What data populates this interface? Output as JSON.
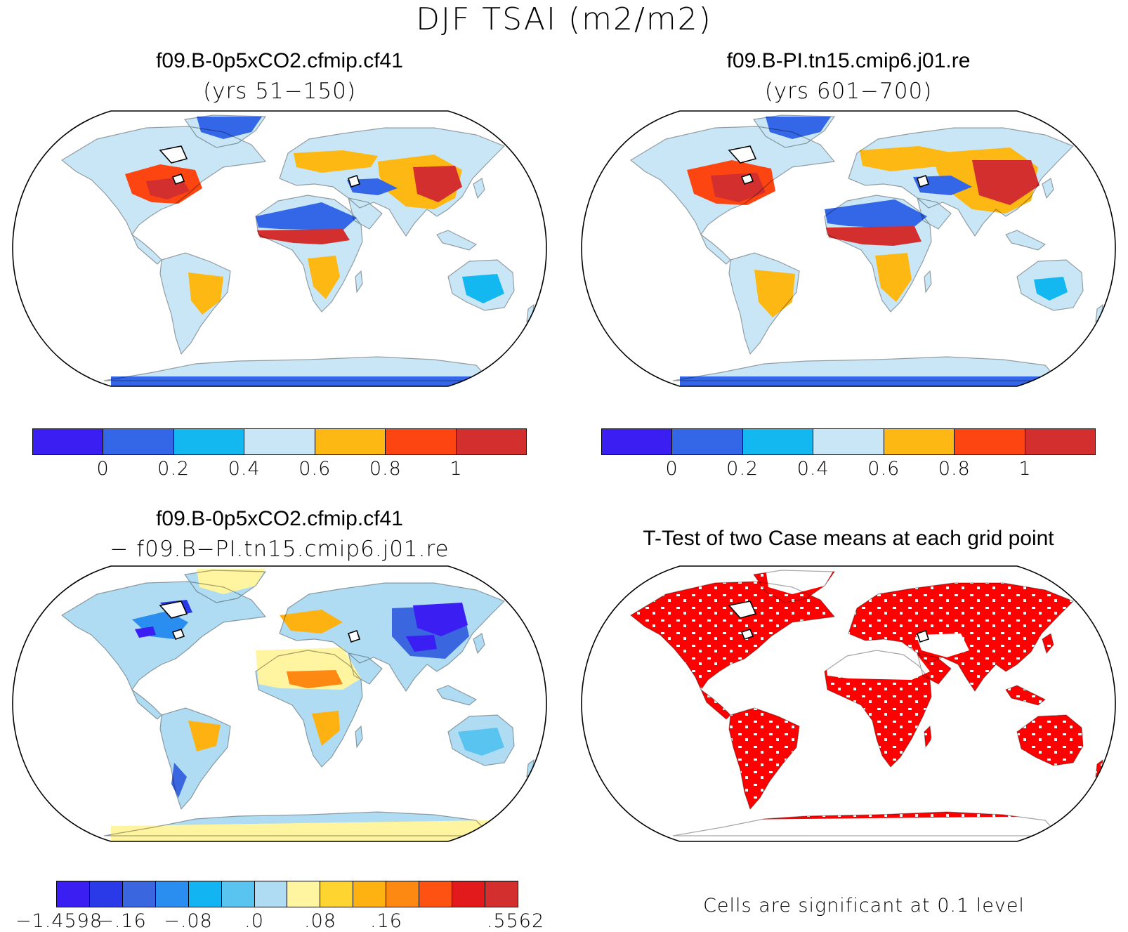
{
  "title": "DJF TSAI (m2/m2)",
  "panels": {
    "top_left": {
      "case": "f09.B-0p5xCO2.cfmip.cf41",
      "years": "(yrs 51−150)"
    },
    "top_right": {
      "case": "f09.B-PI.tn15.cmip6.j01.re",
      "years": "(yrs 601−700)"
    },
    "bottom_left": {
      "case": "f09.B-0p5xCO2.cfmip.cf41",
      "minus_case": "− f09.B−PI.tn15.cmip6.j01.re"
    },
    "bottom_right": {
      "title": "T-Test of two Case means at each grid point",
      "note": "Cells are significant at 0.1 level"
    }
  },
  "colorbars": {
    "abs": {
      "colors": [
        "#3b1ff2",
        "#3466e8",
        "#14b8f0",
        "#c8e6f5",
        "#fdb813",
        "#fc4510",
        "#d42f2f"
      ],
      "labels": [
        "0",
        "0.2",
        "0.4",
        "0.6",
        "0.8",
        "1"
      ]
    },
    "diff": {
      "colors": [
        "#3b1ff2",
        "#2a3ae8",
        "#3a66e0",
        "#2a8ef0",
        "#12b4f2",
        "#5ac4f0",
        "#afdcf2",
        "#fff5a0",
        "#fed530",
        "#fdb212",
        "#fd8812",
        "#fd5212",
        "#e31a1c",
        "#d32f2f"
      ],
      "labels": [
        "−1.4598",
        "−.16",
        "−.08",
        ".0",
        ".08",
        ".16",
        ".5562"
      ]
    }
  },
  "legend_colors": {
    "ocean": "#ffffff",
    "significant": "#ff0000",
    "outline": "#000000"
  }
}
